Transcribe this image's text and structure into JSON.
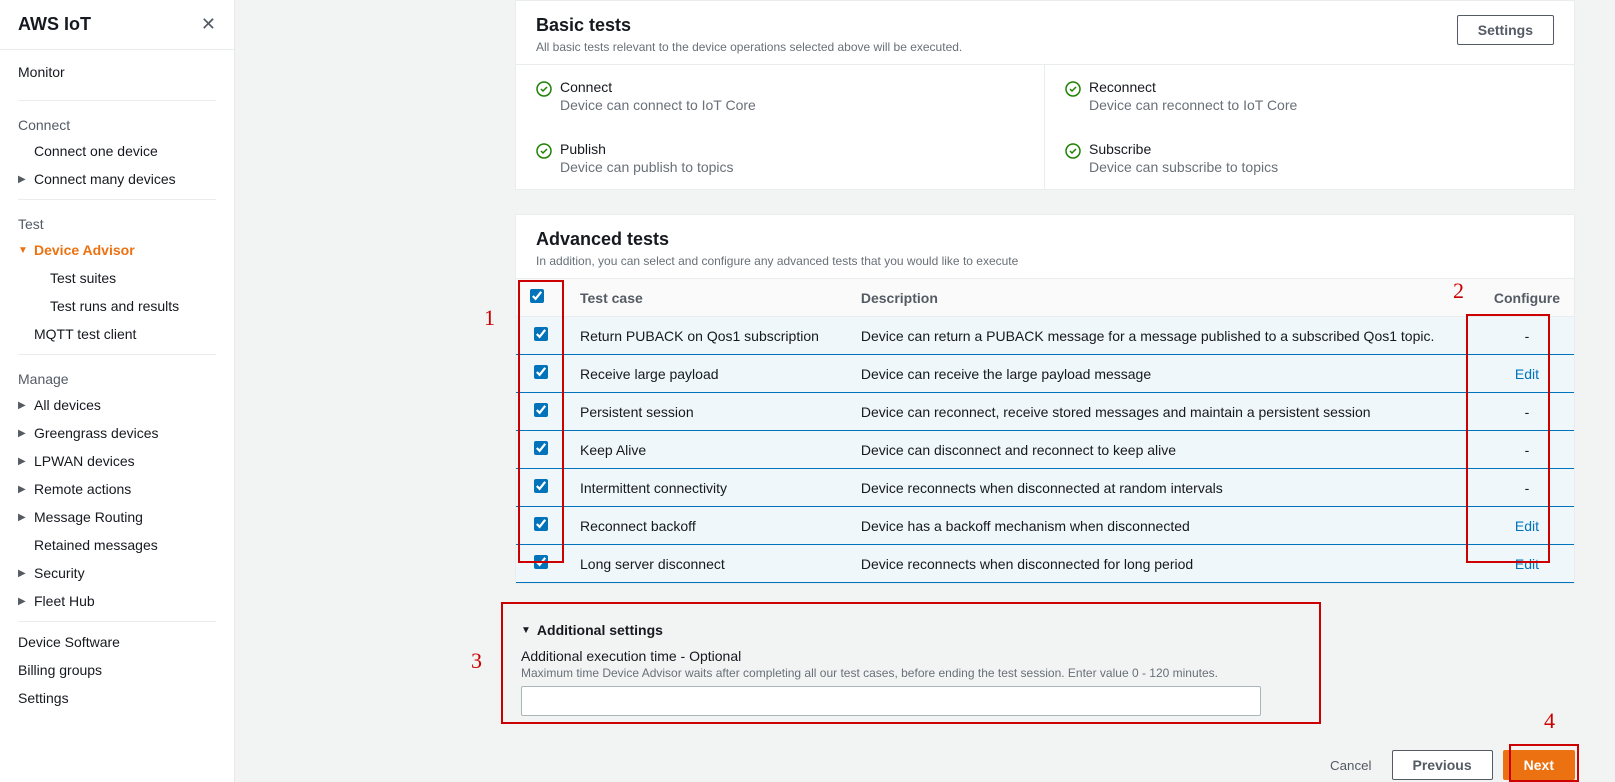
{
  "sidebar": {
    "title": "AWS IoT",
    "monitor": "Monitor",
    "connect_group": "Connect",
    "connect_one": "Connect one device",
    "connect_many": "Connect many devices",
    "test_group": "Test",
    "device_advisor": "Device Advisor",
    "test_suites": "Test suites",
    "test_runs": "Test runs and results",
    "mqtt_client": "MQTT test client",
    "manage_group": "Manage",
    "all_devices": "All devices",
    "greengrass": "Greengrass devices",
    "lpwan": "LPWAN devices",
    "remote_actions": "Remote actions",
    "message_routing": "Message Routing",
    "retained_messages": "Retained messages",
    "security": "Security",
    "fleet_hub": "Fleet Hub",
    "device_software": "Device Software",
    "billing_groups": "Billing groups",
    "settings": "Settings"
  },
  "basic": {
    "title": "Basic tests",
    "subtitle": "All basic tests relevant to the device operations selected above will be executed.",
    "settings_btn": "Settings",
    "tests": {
      "connect": {
        "name": "Connect",
        "desc": "Device can connect to IoT Core"
      },
      "reconnect": {
        "name": "Reconnect",
        "desc": "Device can reconnect to IoT Core"
      },
      "publish": {
        "name": "Publish",
        "desc": "Device can publish to topics"
      },
      "subscribe": {
        "name": "Subscribe",
        "desc": "Device can subscribe to topics"
      }
    }
  },
  "advanced": {
    "title": "Advanced tests",
    "subtitle": "In addition, you can select and configure any advanced tests that you would like to execute",
    "headers": {
      "testcase": "Test case",
      "description": "Description",
      "configure": "Configure"
    },
    "rows": [
      {
        "name": "Return PUBACK on Qos1 subscription",
        "desc": "Device can return a PUBACK message for a message published to a subscribed Qos1 topic.",
        "configure": "-"
      },
      {
        "name": "Receive large payload",
        "desc": "Device can receive the large payload message",
        "configure": "Edit"
      },
      {
        "name": "Persistent session",
        "desc": "Device can reconnect, receive stored messages and maintain a persistent session",
        "configure": "-"
      },
      {
        "name": "Keep Alive",
        "desc": "Device can disconnect and reconnect to keep alive",
        "configure": "-"
      },
      {
        "name": "Intermittent connectivity",
        "desc": "Device reconnects when disconnected at random intervals",
        "configure": "-"
      },
      {
        "name": "Reconnect backoff",
        "desc": "Device has a backoff mechanism when disconnected",
        "configure": "Edit"
      },
      {
        "name": "Long server disconnect",
        "desc": "Device reconnects when disconnected for long period",
        "configure": "Edit"
      }
    ]
  },
  "additional": {
    "title": "Additional settings",
    "field_label": "Additional execution time - Optional",
    "field_help": "Maximum time Device Advisor waits after completing all our test cases, before ending the test session. Enter value 0 - 120 minutes."
  },
  "footer": {
    "cancel": "Cancel",
    "previous": "Previous",
    "next": "Next"
  },
  "annotations": {
    "n1": "1",
    "n2": "2",
    "n3": "3",
    "n4": "4"
  }
}
